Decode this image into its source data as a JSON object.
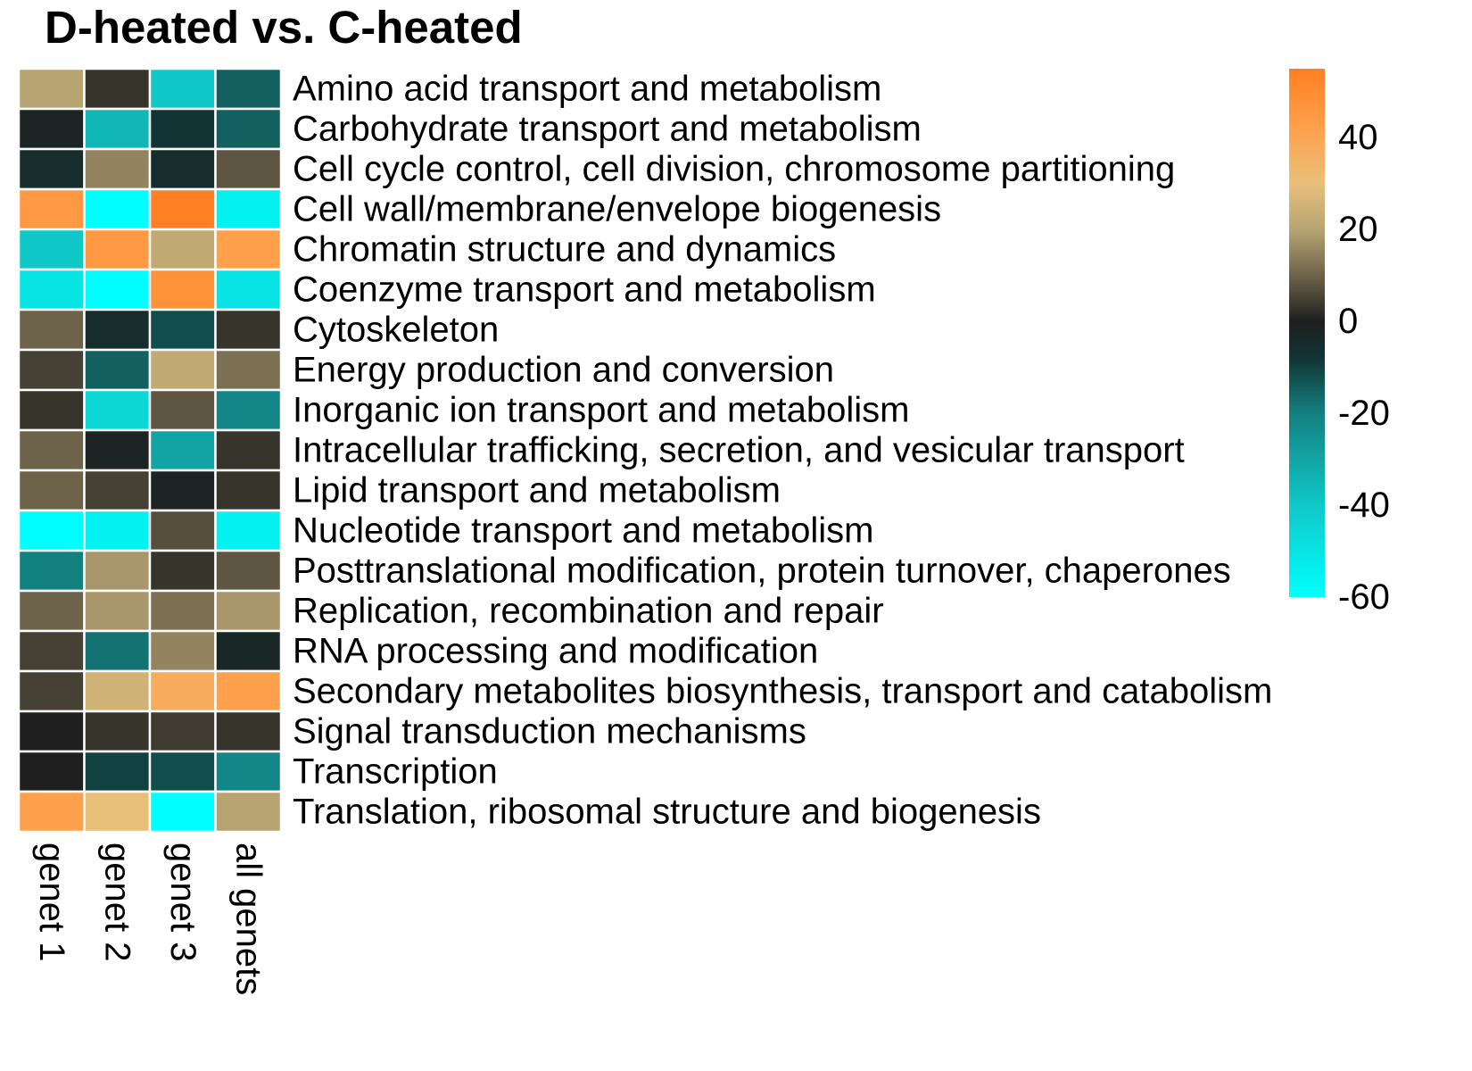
{
  "chart_data": {
    "type": "heatmap",
    "title": "D-heated vs. C-heated",
    "columns": [
      "genet 1",
      "genet 2",
      "genet 3",
      "all genets"
    ],
    "rows": [
      "Amino acid transport and metabolism",
      "Carbohydrate transport and metabolism",
      "Cell cycle control, cell division, chromosome partitioning",
      "Cell wall/membrane/envelope biogenesis",
      "Chromatin structure and dynamics",
      "Coenzyme transport and metabolism",
      "Cytoskeleton",
      "Energy production and conversion",
      "Inorganic ion transport and metabolism",
      "Intracellular trafficking, secretion, and vesicular transport",
      "Lipid transport and metabolism",
      "Nucleotide transport and metabolism",
      "Posttranslational modification, protein turnover, chaperones",
      "Replication, recombination and repair",
      "RNA processing and modification",
      "Secondary metabolites biosynthesis, transport and catabolism",
      "Signal transduction mechanisms",
      "Transcription",
      "Translation, ribosomal structure and biogenesis"
    ],
    "values": [
      [
        20,
        3,
        -40,
        -15
      ],
      [
        -2,
        -35,
        -8,
        -15
      ],
      [
        -5,
        15,
        -5,
        8
      ],
      [
        45,
        -60,
        55,
        -55
      ],
      [
        -40,
        45,
        22,
        42
      ],
      [
        -50,
        -60,
        48,
        -50
      ],
      [
        10,
        -5,
        -12,
        3
      ],
      [
        5,
        -15,
        22,
        12
      ],
      [
        3,
        -45,
        8,
        -22
      ],
      [
        10,
        -2,
        -30,
        3
      ],
      [
        10,
        5,
        -2,
        3
      ],
      [
        -60,
        -55,
        7,
        -55
      ],
      [
        -20,
        18,
        3,
        8
      ],
      [
        10,
        18,
        12,
        18
      ],
      [
        5,
        -18,
        15,
        -3
      ],
      [
        5,
        25,
        38,
        42
      ],
      [
        0,
        3,
        4,
        3
      ],
      [
        0,
        -10,
        -12,
        -22
      ],
      [
        42,
        30,
        -60,
        20
      ]
    ],
    "colorscale": {
      "min": -60,
      "max": 55,
      "stops": [
        {
          "value": -60,
          "color": "#00ffff"
        },
        {
          "value": -40,
          "color": "#10c8c8"
        },
        {
          "value": -20,
          "color": "#138080"
        },
        {
          "value": -8,
          "color": "#123434"
        },
        {
          "value": 0,
          "color": "#1f1f1f"
        },
        {
          "value": 8,
          "color": "#5e5642"
        },
        {
          "value": 20,
          "color": "#b8a473"
        },
        {
          "value": 30,
          "color": "#e8c07a"
        },
        {
          "value": 42,
          "color": "#ffa04d"
        },
        {
          "value": 55,
          "color": "#ff7f22"
        }
      ],
      "ticks": [
        40,
        20,
        0,
        -20,
        -40,
        -60
      ]
    }
  }
}
